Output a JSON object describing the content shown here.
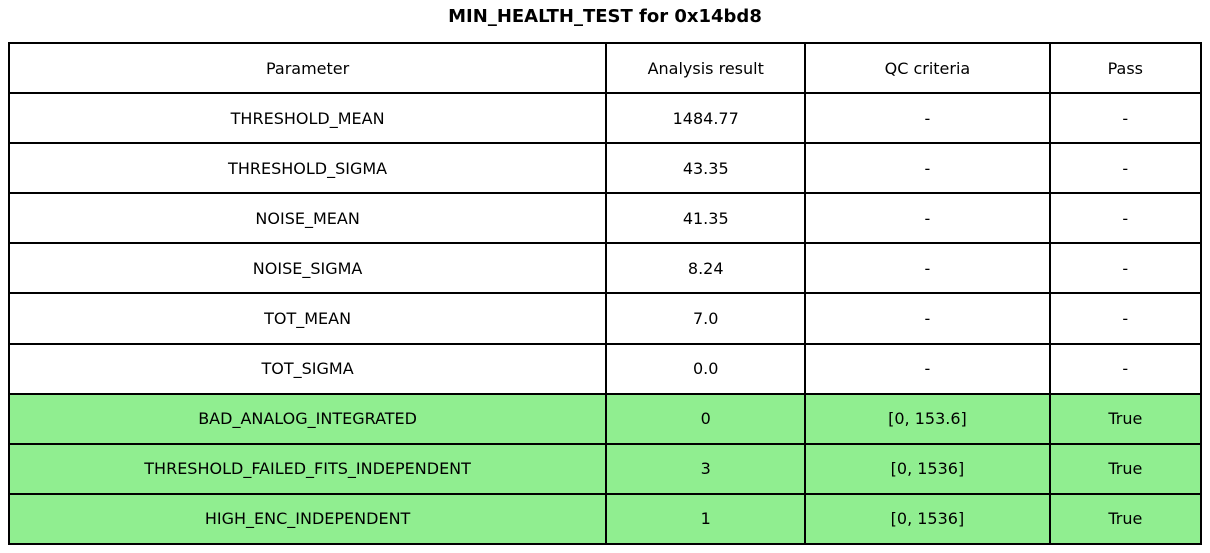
{
  "title": "MIN_HEALTH_TEST for 0x14bd8",
  "colors": {
    "highlight_green": "#90EE90",
    "row_white": "#ffffff",
    "border_black": "#000000"
  },
  "chart_data": {
    "type": "table",
    "title": "MIN_HEALTH_TEST for 0x14bd8",
    "columns": [
      "Parameter",
      "Analysis result",
      "QC criteria",
      "Pass"
    ],
    "rows": [
      [
        "THRESHOLD_MEAN",
        "1484.77",
        "-",
        "-"
      ],
      [
        "THRESHOLD_SIGMA",
        "43.35",
        "-",
        "-"
      ],
      [
        "NOISE_MEAN",
        "41.35",
        "-",
        "-"
      ],
      [
        "NOISE_SIGMA",
        "8.24",
        "-",
        "-"
      ],
      [
        "TOT_MEAN",
        "7.0",
        "-",
        "-"
      ],
      [
        "TOT_SIGMA",
        "0.0",
        "-",
        "-"
      ],
      [
        "BAD_ANALOG_INTEGRATED",
        "0",
        "[0, 153.6]",
        "True"
      ],
      [
        "THRESHOLD_FAILED_FITS_INDEPENDENT",
        "3",
        "[0, 1536]",
        "True"
      ],
      [
        "HIGH_ENC_INDEPENDENT",
        "1",
        "[0, 1536]",
        "True"
      ]
    ],
    "highlighted_rows": [
      6,
      7,
      8
    ],
    "layout": {
      "header_row": true,
      "grid": "full",
      "title_position": "top-center"
    }
  }
}
